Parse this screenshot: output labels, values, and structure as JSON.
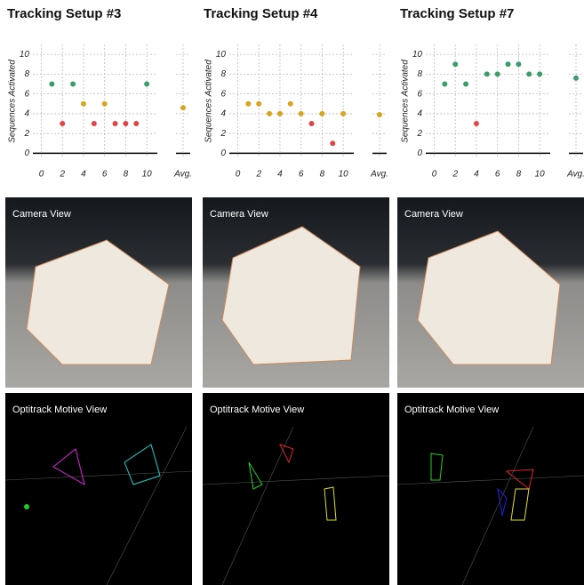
{
  "chart_data": [
    {
      "type": "scatter",
      "title": "Tracking Setup #3",
      "y_label": "Sequences Activated",
      "x": [
        1,
        2,
        3,
        4,
        5,
        6,
        7,
        8,
        9,
        10
      ],
      "values": [
        7,
        3,
        7,
        5,
        3,
        5,
        3,
        3,
        3,
        7
      ],
      "point_colors": [
        "#3a9e6a",
        "#e04545",
        "#3a9e6a",
        "#d9a520",
        "#e04545",
        "#d9a520",
        "#e04545",
        "#e04545",
        "#e04545",
        "#3a9e6a"
      ],
      "avg": {
        "label": "Avg.",
        "value": 4.6,
        "color": "#d9a520"
      },
      "xlim": [
        -0.8,
        11
      ],
      "ylim": [
        -0.5,
        11
      ],
      "xticks": [
        0,
        2,
        4,
        6,
        8,
        10
      ],
      "yticks": [
        0,
        2,
        4,
        6,
        8,
        10
      ],
      "grid": true
    },
    {
      "type": "scatter",
      "title": "Tracking Setup #4",
      "y_label": "Sequences Activated",
      "x": [
        1,
        2,
        3,
        4,
        5,
        6,
        7,
        8,
        9,
        10
      ],
      "values": [
        5,
        5,
        4,
        4,
        5,
        4,
        3,
        4,
        1,
        4
      ],
      "point_colors": [
        "#d9a520",
        "#d9a520",
        "#d9a520",
        "#d9a520",
        "#d9a520",
        "#d9a520",
        "#e04545",
        "#d9a520",
        "#e04545",
        "#d9a520"
      ],
      "avg": {
        "label": "Avg.",
        "value": 3.9,
        "color": "#d9a520"
      },
      "xlim": [
        -0.8,
        11
      ],
      "ylim": [
        -0.5,
        11
      ],
      "xticks": [
        0,
        2,
        4,
        6,
        8,
        10
      ],
      "yticks": [
        0,
        2,
        4,
        6,
        8,
        10
      ],
      "grid": true
    },
    {
      "type": "scatter",
      "title": "Tracking Setup #7",
      "y_label": "Sequences Activated",
      "x": [
        1,
        2,
        3,
        4,
        5,
        6,
        7,
        8,
        9,
        10
      ],
      "values": [
        7,
        9,
        7,
        3,
        8,
        8,
        9,
        9,
        8,
        8
      ],
      "point_colors": [
        "#3a9e6a",
        "#3a9e6a",
        "#3a9e6a",
        "#e04545",
        "#3a9e6a",
        "#3a9e6a",
        "#3a9e6a",
        "#3a9e6a",
        "#3a9e6a",
        "#3a9e6a"
      ],
      "avg": {
        "label": "Avg.",
        "value": 7.6,
        "color": "#3a9e6a"
      },
      "xlim": [
        -0.8,
        11
      ],
      "ylim": [
        -0.5,
        11
      ],
      "xticks": [
        0,
        2,
        4,
        6,
        8,
        10
      ],
      "yticks": [
        0,
        2,
        4,
        6,
        8,
        10
      ],
      "grid": true
    }
  ],
  "camera_views": [
    {
      "label": "Camera View"
    },
    {
      "label": "Camera View"
    },
    {
      "label": "Camera View"
    }
  ],
  "motive_views": [
    {
      "label": "Optitrack Motive View"
    },
    {
      "label": "Optitrack Motive View"
    },
    {
      "label": "Optitrack Motive View"
    }
  ]
}
